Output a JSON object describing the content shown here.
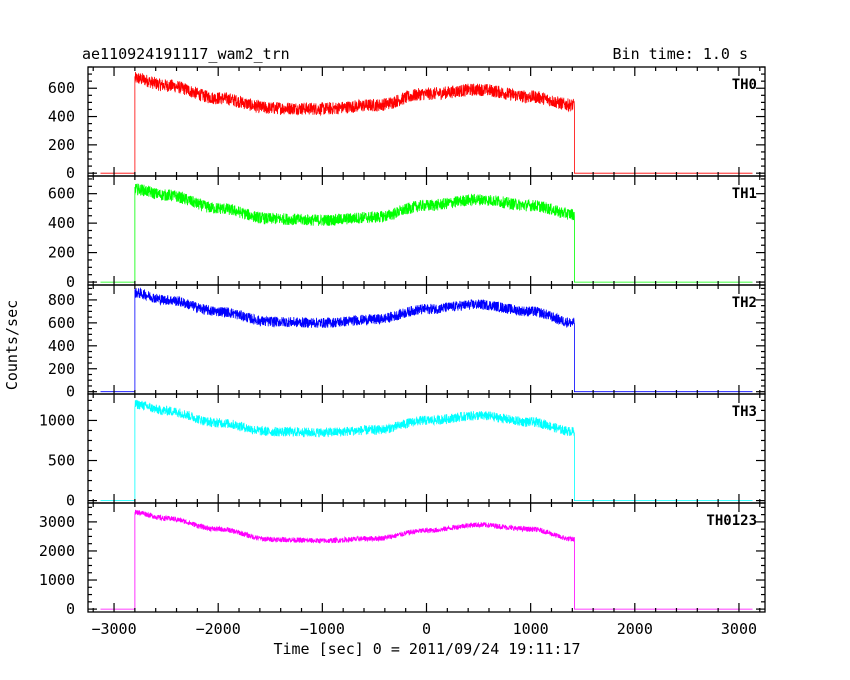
{
  "title": "ae110924191117_wam2_trn",
  "bin_time": "Bin time: 1.0 s",
  "chart_data": {
    "type": "line",
    "xlabel": "Time [sec] 0 = 2011/09/24 19:11:17",
    "ylabel": "Counts/sec",
    "xlim": [
      -3250,
      3250
    ],
    "x_ticks": [
      -3000,
      -2000,
      -1000,
      0,
      1000,
      2000,
      3000
    ],
    "x_tick_labels": [
      "−3000",
      "−2000",
      "−1000",
      "0",
      "1000",
      "2000",
      "3000"
    ],
    "grid": false,
    "source_start": -2800,
    "source_end": 1420,
    "data_range": [
      -3130,
      3130
    ],
    "panels": [
      {
        "name": "TH0",
        "color": "#ff0000",
        "ylim": [
          -20,
          750
        ],
        "y_ticks": [
          0,
          200,
          400,
          600
        ],
        "profile_x": [
          -2800,
          -2500,
          -2000,
          -1500,
          -1000,
          -500,
          0,
          500,
          1000,
          1420
        ],
        "profile_y": [
          670,
          620,
          530,
          460,
          455,
          480,
          560,
          590,
          540,
          480
        ],
        "noise": 45
      },
      {
        "name": "TH1",
        "color": "#00ff00",
        "ylim": [
          -20,
          720
        ],
        "y_ticks": [
          0,
          200,
          400,
          600
        ],
        "profile_x": [
          -2800,
          -2500,
          -2000,
          -1500,
          -1000,
          -500,
          0,
          500,
          1000,
          1420
        ],
        "profile_y": [
          630,
          590,
          500,
          430,
          420,
          440,
          520,
          560,
          520,
          460
        ],
        "noise": 40
      },
      {
        "name": "TH2",
        "color": "#0000ff",
        "ylim": [
          -20,
          930
        ],
        "y_ticks": [
          0,
          200,
          400,
          600,
          800
        ],
        "profile_x": [
          -2800,
          -2500,
          -2000,
          -1500,
          -1000,
          -500,
          0,
          500,
          1000,
          1420
        ],
        "profile_y": [
          860,
          800,
          700,
          610,
          600,
          630,
          720,
          760,
          700,
          600
        ],
        "noise": 45
      },
      {
        "name": "TH3",
        "color": "#00ffff",
        "ylim": [
          -30,
          1330
        ],
        "y_ticks": [
          0,
          500,
          1000
        ],
        "profile_x": [
          -2800,
          -2500,
          -2000,
          -1500,
          -1000,
          -500,
          0,
          500,
          1000,
          1420
        ],
        "profile_y": [
          1200,
          1120,
          970,
          860,
          850,
          880,
          1000,
          1060,
          980,
          860
        ],
        "noise": 60
      },
      {
        "name": "TH0123",
        "color": "#ff00ff",
        "ylim": [
          -100,
          3650
        ],
        "y_ticks": [
          0,
          1000,
          2000,
          3000
        ],
        "profile_x": [
          -2800,
          -2500,
          -2000,
          -1500,
          -1000,
          -500,
          0,
          500,
          1000,
          1420
        ],
        "profile_y": [
          3330,
          3120,
          2750,
          2400,
          2350,
          2430,
          2700,
          2900,
          2750,
          2400
        ],
        "noise": 90
      }
    ]
  }
}
